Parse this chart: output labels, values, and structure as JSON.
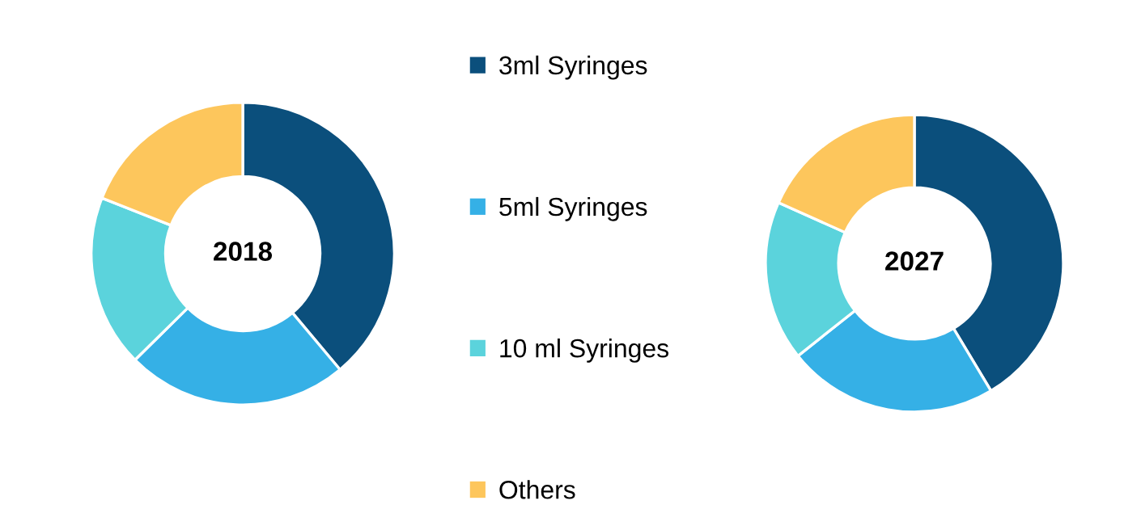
{
  "chart_data": {
    "type": "donut",
    "categories": [
      "3ml Syringes",
      "5ml Syringes",
      "10 ml Syringes",
      "Others"
    ],
    "colors": [
      "#0b4f7c",
      "#35b0e6",
      "#5bd3dc",
      "#fdc65c"
    ],
    "legend": "right",
    "series": [
      {
        "name": "2018",
        "values": [
          38.9,
          23.7,
          18.4,
          19.0
        ]
      },
      {
        "name": "2027",
        "values": [
          41.4,
          22.9,
          17.4,
          18.3
        ]
      }
    ]
  }
}
